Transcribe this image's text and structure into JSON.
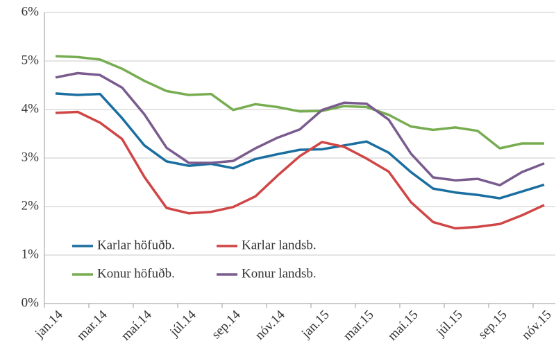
{
  "chart_data": {
    "type": "line",
    "categories": [
      "jan.14",
      null,
      "mar.14",
      null,
      "maí.14",
      null,
      "júl.14",
      null,
      "sep.14",
      null,
      "nóv.14",
      null,
      "jan.15",
      null,
      "mar.15",
      null,
      "maí.15",
      null,
      "júl.15",
      null,
      "sep.15",
      null,
      "nóv.15"
    ],
    "series": [
      {
        "name": "Karlar höfuðb.",
        "color": "#1a6ea0",
        "values": [
          4.33,
          4.3,
          4.32,
          3.82,
          3.26,
          2.93,
          2.84,
          2.88,
          2.79,
          2.98,
          3.08,
          3.17,
          3.18,
          3.26,
          3.34,
          3.11,
          2.71,
          2.37,
          2.29,
          2.24,
          2.17,
          2.31,
          2.45
        ]
      },
      {
        "name": "Karlar landsb.",
        "color": "#d04545",
        "values": [
          3.93,
          3.95,
          3.73,
          3.39,
          2.61,
          1.97,
          1.86,
          1.89,
          1.99,
          2.21,
          2.64,
          3.04,
          3.33,
          3.23,
          2.99,
          2.72,
          2.09,
          1.68,
          1.55,
          1.58,
          1.64,
          1.82,
          2.03
        ]
      },
      {
        "name": "Konur höfuðb.",
        "color": "#77ad50",
        "values": [
          5.1,
          5.08,
          5.03,
          4.84,
          4.59,
          4.38,
          4.3,
          4.32,
          3.99,
          4.11,
          4.05,
          3.96,
          3.97,
          4.07,
          4.05,
          3.89,
          3.65,
          3.58,
          3.63,
          3.56,
          3.2,
          3.3,
          3.3
        ]
      },
      {
        "name": "Konur landsb.",
        "color": "#7a5b8e",
        "values": [
          4.66,
          4.75,
          4.71,
          4.45,
          3.9,
          3.21,
          2.9,
          2.9,
          2.94,
          3.2,
          3.42,
          3.59,
          3.99,
          4.14,
          4.12,
          3.79,
          3.09,
          2.6,
          2.54,
          2.57,
          2.44,
          2.71,
          2.89
        ]
      }
    ],
    "ylim": [
      0,
      6
    ],
    "yticks": [
      {
        "value": 0,
        "label": "0%"
      },
      {
        "value": 1,
        "label": "1%"
      },
      {
        "value": 2,
        "label": "2%"
      },
      {
        "value": 3,
        "label": "3%"
      },
      {
        "value": 4,
        "label": "4%"
      },
      {
        "value": 5,
        "label": "5%"
      },
      {
        "value": 6,
        "label": "6%"
      }
    ],
    "grid": true
  }
}
